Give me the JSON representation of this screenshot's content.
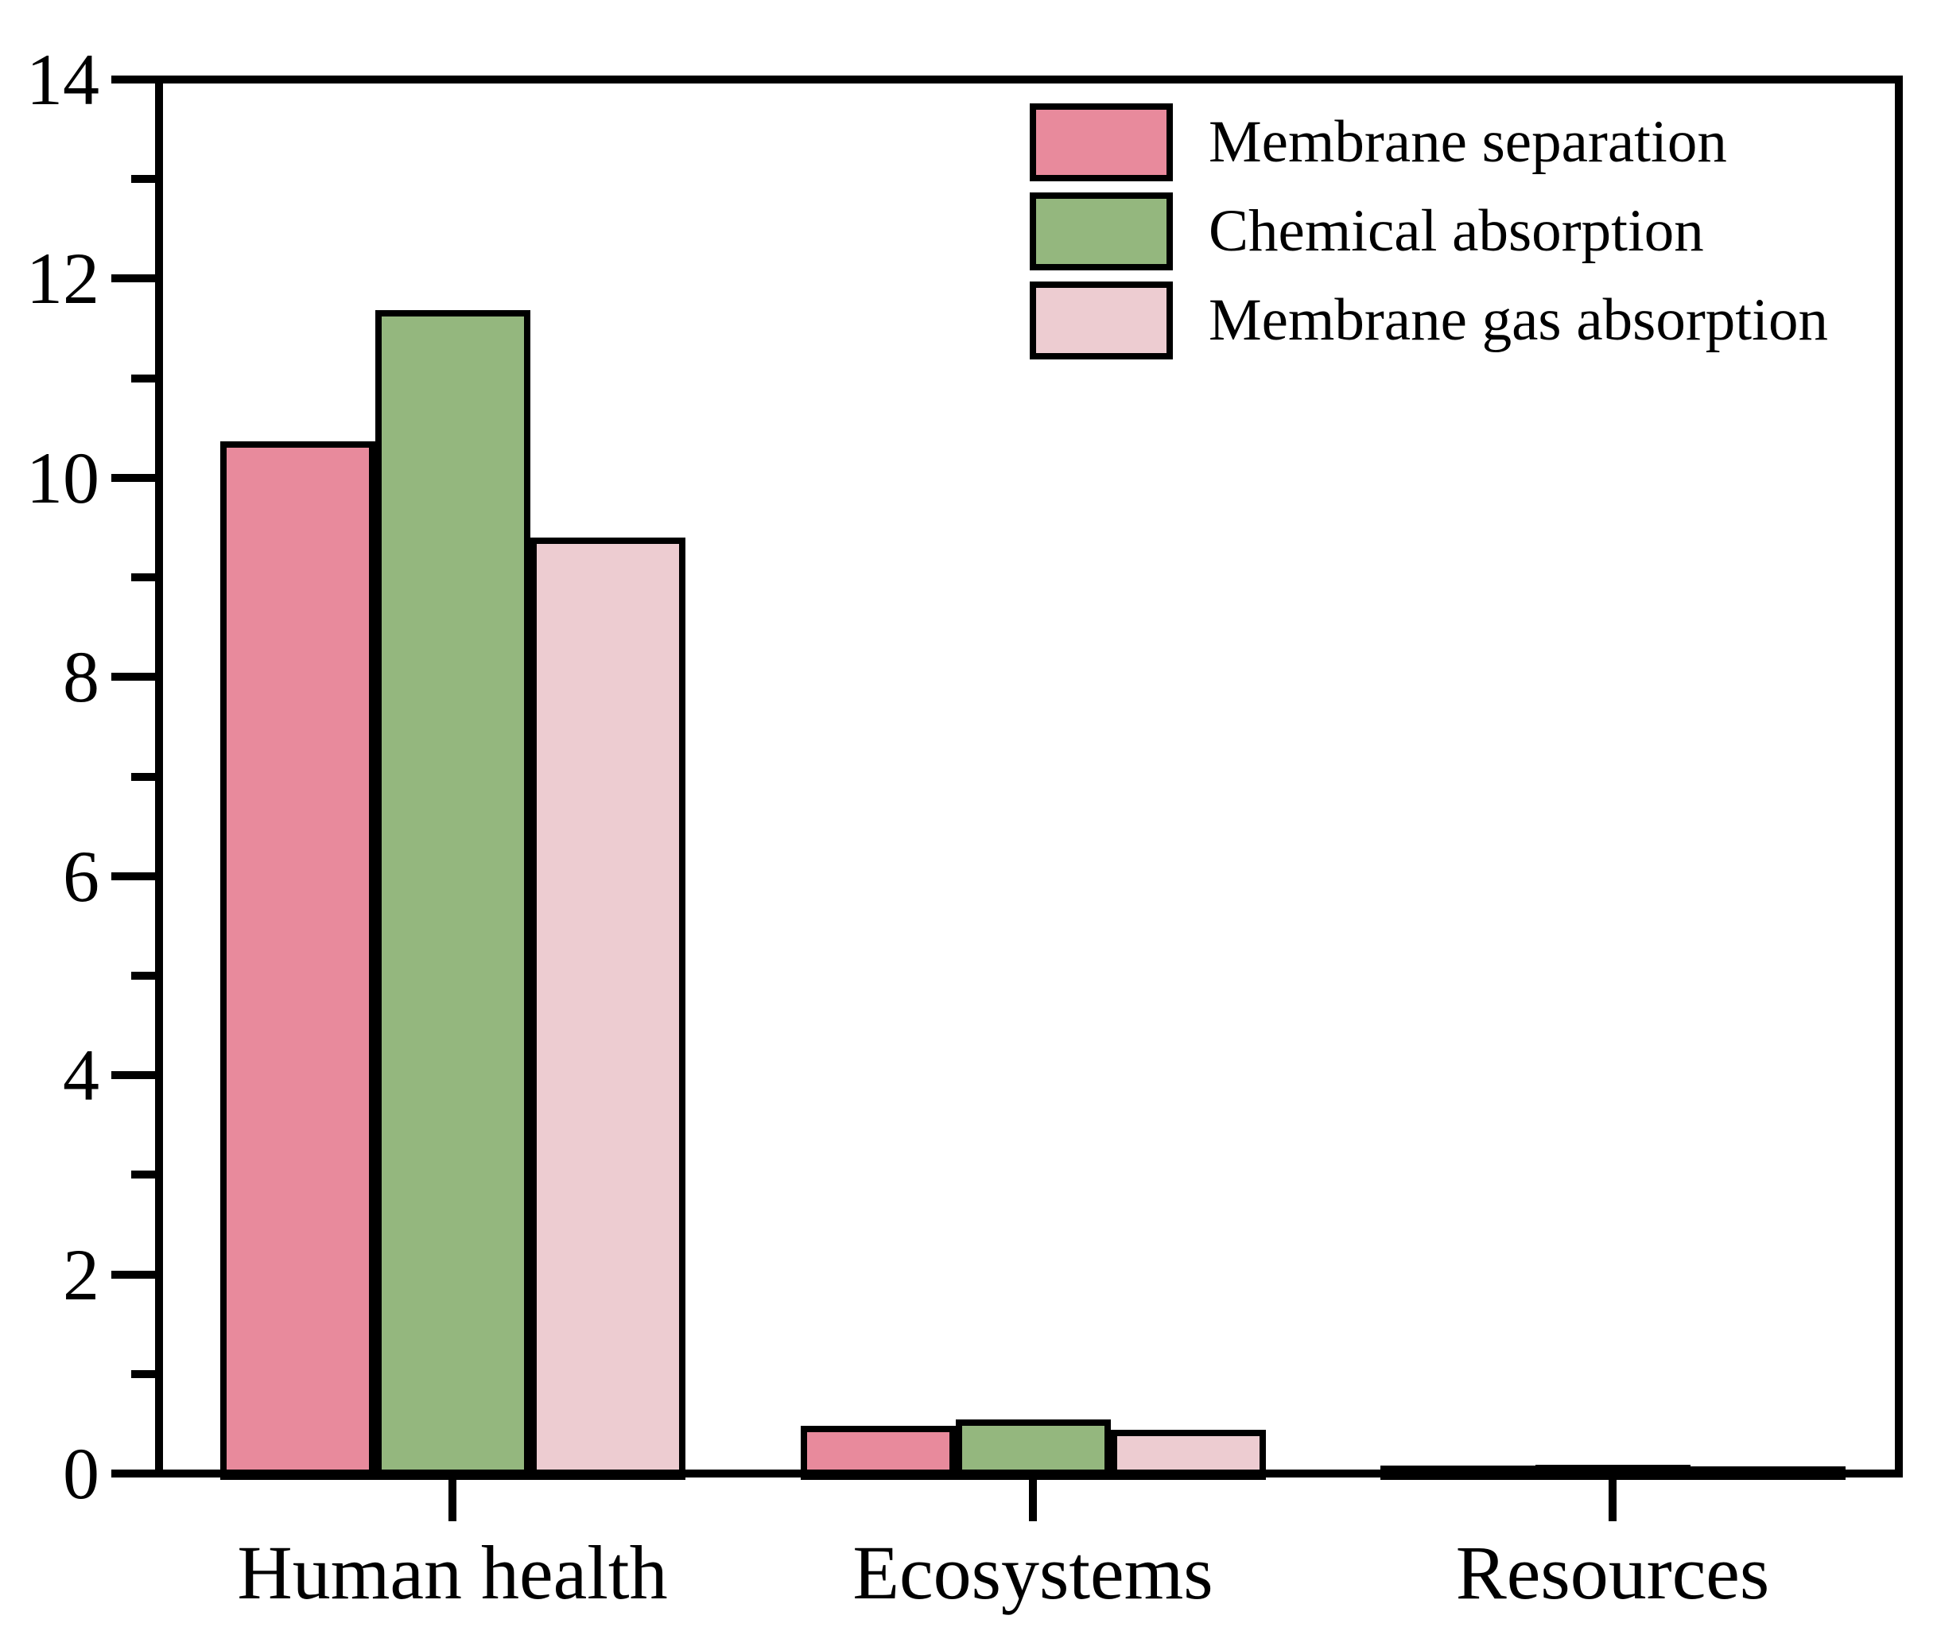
{
  "chart_data": {
    "type": "bar",
    "categories": [
      "Human health",
      "Ecosystems",
      "Resources"
    ],
    "series": [
      {
        "name": "Membrane separation",
        "color": "#e88a9c",
        "values": [
          10.37,
          0.48,
          0.08
        ]
      },
      {
        "name": "Chemical absorption",
        "color": "#94b77e",
        "values": [
          11.68,
          0.54,
          0.09
        ]
      },
      {
        "name": "Membrane gas absorption",
        "color": "#edccd1",
        "values": [
          9.4,
          0.44,
          0.07
        ]
      }
    ],
    "title": "",
    "xlabel": "",
    "ylabel": "",
    "ylim": [
      0,
      14
    ],
    "yticks": [
      0,
      2,
      4,
      6,
      8,
      10,
      12,
      14
    ],
    "ytick_labels": [
      "0",
      "2",
      "4",
      "6",
      "8",
      "10",
      "12",
      "14"
    ],
    "minor_yticks": [
      1,
      3,
      5,
      7,
      9,
      11,
      13
    ],
    "grid": false,
    "legend_position": "top-right-inside",
    "bar_outline_color": "#000000",
    "axis_color": "#000000"
  }
}
